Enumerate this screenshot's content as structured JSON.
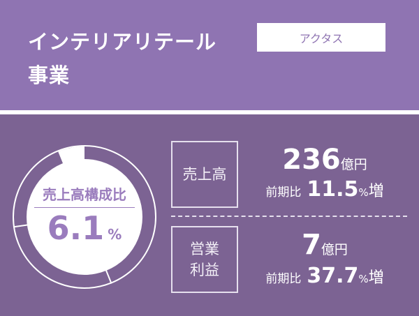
{
  "header": {
    "title_line1": "インテリアリテール",
    "title_line2": "事業",
    "badge": "アクタス"
  },
  "donut": {
    "label": "売上高構成比",
    "value": "6.1",
    "unit": "%",
    "share_percent": 6.1,
    "colors": {
      "ring": "#7c6393",
      "highlight": "#ffffff",
      "text": "#9a7cbd"
    }
  },
  "metrics": [
    {
      "label_lines": [
        "売上高"
      ],
      "value": "236",
      "unit": "億円",
      "yoy_label": "前期比",
      "yoy_value": "11.5",
      "yoy_unit": "%",
      "yoy_suffix": "増"
    },
    {
      "label_lines": [
        "営業",
        "利益"
      ],
      "value": "7",
      "unit": "億円",
      "yoy_label": "前期比",
      "yoy_value": "37.7",
      "yoy_unit": "%",
      "yoy_suffix": "増"
    }
  ],
  "colors": {
    "header_bg": "#8f74b2",
    "body_bg": "#7c6393"
  }
}
